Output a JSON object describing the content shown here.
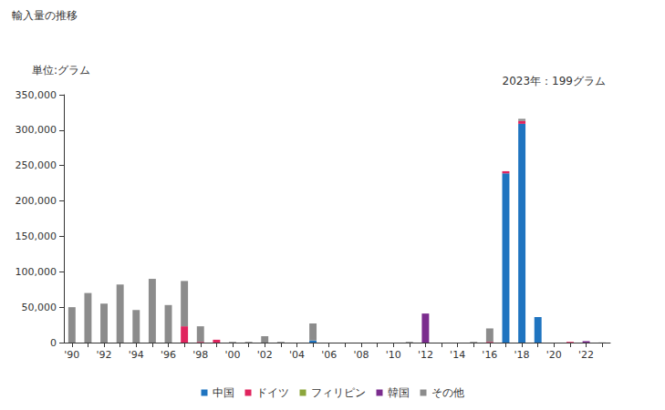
{
  "chart_data": {
    "type": "bar",
    "title": "輸入量の推移",
    "ylabel": "単位:グラム",
    "annotations": [
      "2023年：199グラム"
    ],
    "categories": [
      "'90",
      null,
      "'92",
      null,
      "'94",
      null,
      "'96",
      null,
      "'98",
      null,
      "'00",
      null,
      "'02",
      null,
      "'04",
      null,
      "'06",
      null,
      "'08",
      null,
      "'10",
      null,
      "'12",
      null,
      "'14",
      null,
      "'16",
      null,
      "'18",
      null,
      "'20",
      null,
      "'22",
      null
    ],
    "series": [
      {
        "name": "中国",
        "color": "#1f74c0",
        "values": [
          0,
          0,
          0,
          0,
          0,
          0,
          0,
          0,
          0,
          0,
          0,
          0,
          0,
          0,
          0,
          3000,
          0,
          0,
          0,
          0,
          0,
          0,
          0,
          0,
          0,
          0,
          0,
          239000,
          309000,
          36000,
          0,
          0,
          0,
          0
        ]
      },
      {
        "name": "ドイツ",
        "color": "#e0245e",
        "values": [
          0,
          0,
          0,
          0,
          0,
          0,
          0,
          23000,
          1000,
          4000,
          0,
          0,
          0,
          0,
          0,
          0,
          0,
          0,
          0,
          0,
          0,
          0,
          0,
          0,
          0,
          0,
          1000,
          3000,
          4000,
          0,
          0,
          1000,
          0,
          0
        ]
      },
      {
        "name": "フィリピン",
        "color": "#8ca63c",
        "values": [
          0,
          0,
          0,
          0,
          0,
          0,
          0,
          0,
          0,
          0,
          0,
          0,
          0,
          0,
          0,
          0,
          0,
          0,
          0,
          0,
          0,
          0,
          0,
          0,
          0,
          0,
          0,
          0,
          0,
          0,
          0,
          0,
          0,
          0
        ]
      },
      {
        "name": "韓国",
        "color": "#7b2c8e",
        "values": [
          0,
          0,
          0,
          0,
          0,
          0,
          0,
          0,
          0,
          0,
          0,
          0,
          0,
          0,
          0,
          0,
          0,
          0,
          0,
          0,
          0,
          0,
          41000,
          0,
          0,
          0,
          0,
          0,
          0,
          0,
          0,
          0,
          2000,
          0
        ]
      },
      {
        "name": "その他",
        "color": "#8c8c8c",
        "values": [
          50000,
          70000,
          55000,
          82000,
          46000,
          90000,
          53000,
          64000,
          22000,
          0,
          1000,
          1000,
          9000,
          1000,
          0,
          24000,
          0,
          0,
          0,
          0,
          0,
          1000,
          0,
          0,
          0,
          1000,
          19000,
          0,
          3000,
          0,
          0,
          0,
          0,
          199
        ]
      }
    ],
    "ylim": [
      0,
      350000
    ],
    "yticks": [
      0,
      {
        "value": 50000,
        "label": "50,000"
      },
      {
        "value": 100000,
        "label": "100,000"
      },
      {
        "value": 150000,
        "label": "150,000"
      },
      {
        "value": 200000,
        "label": "200,000"
      },
      {
        "value": 250000,
        "label": "250,000"
      },
      {
        "value": 300000,
        "label": "300,000"
      },
      {
        "value": 350000,
        "label": "350,000"
      }
    ],
    "stacked": true,
    "grid": false,
    "legend": "bottom"
  }
}
